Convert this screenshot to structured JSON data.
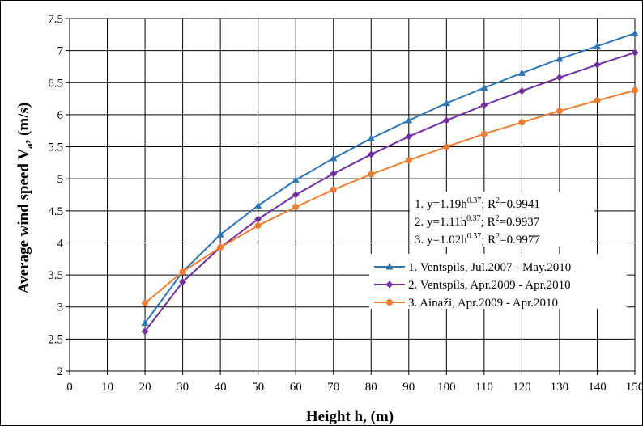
{
  "chart_data": {
    "type": "line",
    "xlabel": "Height h, (m)",
    "ylabel_main": "Average wind speed V",
    "ylabel_sub": "a",
    "ylabel_tail": ", (m/s)",
    "xlim": [
      0,
      150
    ],
    "ylim": [
      2,
      7.5
    ],
    "xticks": [
      0,
      10,
      20,
      30,
      40,
      50,
      60,
      70,
      80,
      90,
      100,
      110,
      120,
      130,
      140,
      150
    ],
    "yticks": [
      2,
      2.5,
      3,
      3.5,
      4,
      4.5,
      5,
      5.5,
      6,
      6.5,
      7,
      7.5
    ],
    "grid": true,
    "legend_position": "center-right",
    "x": [
      20,
      30,
      40,
      50,
      60,
      70,
      80,
      90,
      100,
      110,
      120,
      130,
      140,
      150
    ],
    "series": [
      {
        "name": "1. Ventspils, Jul.2007 - May.2010",
        "color": "#2e75b6",
        "marker": "triangle",
        "values": [
          2.75,
          3.55,
          4.13,
          4.58,
          4.98,
          5.32,
          5.63,
          5.91,
          6.18,
          6.42,
          6.65,
          6.87,
          7.07,
          7.27
        ]
      },
      {
        "name": "2. Ventspils, Apr.2009 - Apr.2010",
        "color": "#7030a0",
        "marker": "diamond",
        "values": [
          2.62,
          3.39,
          3.93,
          4.37,
          4.75,
          5.08,
          5.38,
          5.66,
          5.91,
          6.15,
          6.37,
          6.58,
          6.78,
          6.97
        ]
      },
      {
        "name": "3. Ainaži, Apr.2009 - Apr.2010",
        "color": "#ed7d31",
        "marker": "circle",
        "values": [
          3.06,
          3.55,
          3.93,
          4.27,
          4.56,
          4.83,
          5.07,
          5.29,
          5.5,
          5.7,
          5.88,
          6.06,
          6.22,
          6.38
        ]
      }
    ],
    "equations": [
      {
        "prefix": "1. y=1.19h",
        "exp": "0.37",
        "mid": "; R",
        "sq": "2",
        "r2": "=0.9941"
      },
      {
        "prefix": "2. y=1.11h",
        "exp": "0.37",
        "mid": "; R",
        "sq": "2",
        "r2": "=0.9937"
      },
      {
        "prefix": "3. y=1.02h",
        "exp": "0.37",
        "mid": "; R",
        "sq": "2",
        "r2": "=0.9977"
      }
    ]
  }
}
